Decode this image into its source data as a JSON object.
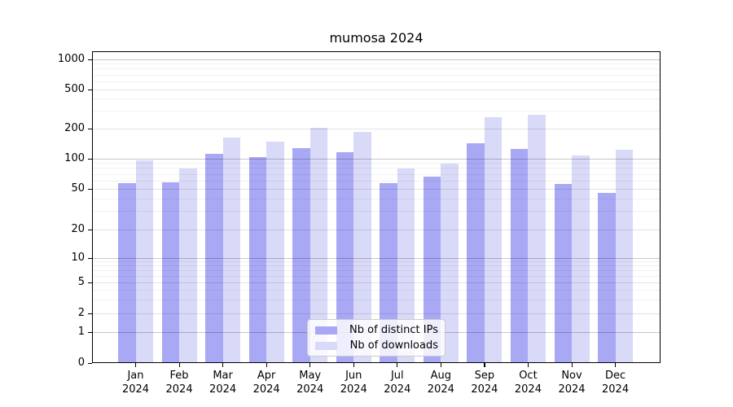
{
  "title": "mumosa 2024",
  "chart_data": {
    "type": "bar",
    "categories": [
      "Jan",
      "Feb",
      "Mar",
      "Apr",
      "May",
      "Jun",
      "Jul",
      "Aug",
      "Sep",
      "Oct",
      "Nov",
      "Dec"
    ],
    "year": "2024",
    "series": [
      {
        "name": "Nb of distinct IPs",
        "color": "#a8a8f5",
        "values": [
          57,
          58,
          112,
          104,
          128,
          116,
          57,
          66,
          143,
          125,
          56,
          46
        ]
      },
      {
        "name": "Nb of downloads",
        "color": "#d9d9f8",
        "values": [
          97,
          80,
          162,
          148,
          205,
          185,
          80,
          90,
          260,
          275,
          108,
          123
        ]
      }
    ],
    "title": "mumosa 2024",
    "xlabel": "",
    "ylabel": "",
    "yscale": "symlog",
    "ylim": [
      0,
      1150
    ],
    "y_ticks": [
      0,
      1,
      2,
      5,
      10,
      20,
      50,
      100,
      200,
      500,
      1000
    ],
    "y_minor_gridlines": [
      3,
      4,
      6,
      7,
      8,
      9,
      30,
      40,
      60,
      70,
      80,
      90,
      300,
      400,
      600,
      700,
      800,
      900
    ],
    "grid": true,
    "legend": {
      "position": "lower center",
      "entries": [
        "Nb of distinct IPs",
        "Nb of downloads"
      ]
    }
  },
  "colors": {
    "bar_ips": "#a8a8f5",
    "bar_downloads": "#d9d9f8",
    "spine": "#000000",
    "grid_major": "rgba(0,0,0,0.22)",
    "grid_labeled": "rgba(0,0,0,0.11)",
    "grid_minor": "rgba(0,0,0,0.055)",
    "legend_border": "#cccccc"
  }
}
